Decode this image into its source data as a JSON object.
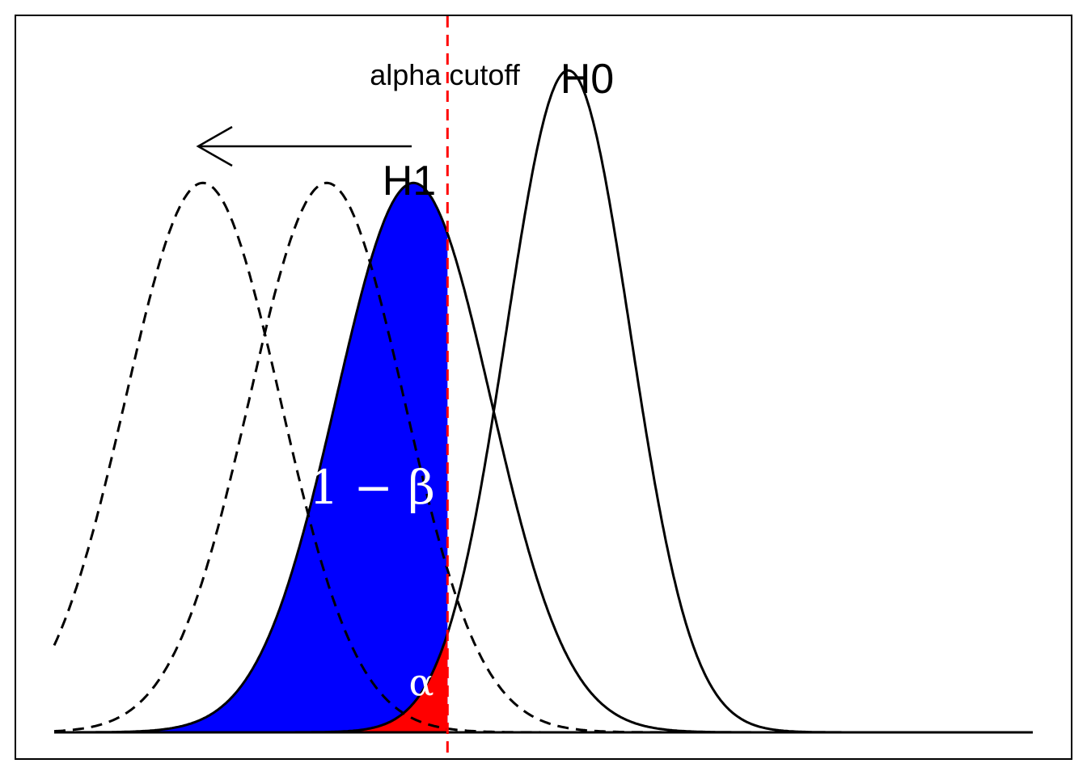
{
  "labels": {
    "cutoff": "alpha cutoff",
    "h0": "H0",
    "h1": "H1",
    "power": "1 − β",
    "alpha": "α"
  },
  "colors": {
    "power_fill": "#0000ff",
    "alpha_fill": "#ff0000",
    "cutoff_line": "#ff0000",
    "curve": "#000000",
    "label_on_fill": "#ffffff"
  },
  "distributions": {
    "h0": {
      "mean": 2.5,
      "sd": 1,
      "peak": 1.0,
      "line": "solid"
    },
    "h1": {
      "mean": 0,
      "sd": 1.25,
      "peak": 0.83,
      "line": "solid"
    },
    "h1_shifted": [
      {
        "mean": -1.4,
        "sd": 1.25,
        "peak": 0.83,
        "line": "dashed"
      },
      {
        "mean": -3.4,
        "sd": 1.25,
        "peak": 0.83,
        "line": "dashed"
      }
    ]
  },
  "cutoff_x": 0.55,
  "x_range": [
    -5.8,
    10
  ],
  "y_range": [
    0,
    1.06
  ],
  "arrow_direction": "left"
}
